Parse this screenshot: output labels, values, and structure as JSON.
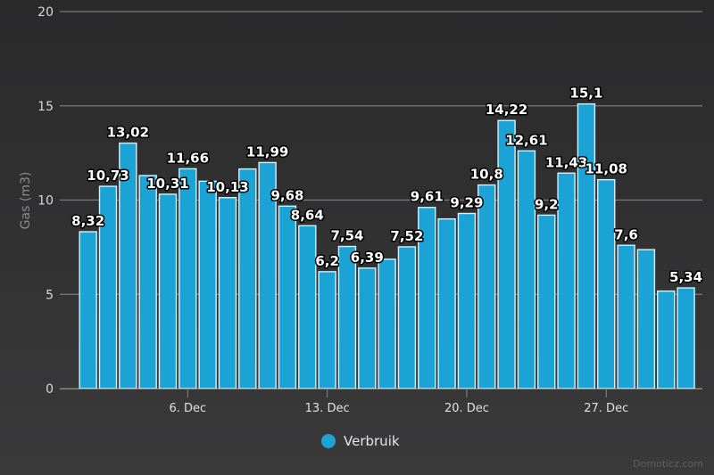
{
  "chart_data": {
    "type": "bar",
    "title": "",
    "xlabel": "",
    "ylabel": "Gas (m3)",
    "ylim": [
      0,
      20
    ],
    "yticks": [
      0,
      5,
      10,
      15,
      20
    ],
    "grid": true,
    "x": [
      1,
      2,
      3,
      4,
      5,
      6,
      7,
      8,
      9,
      10,
      11,
      12,
      13,
      14,
      15,
      16,
      17,
      18,
      19,
      20,
      21,
      22,
      23,
      24,
      25,
      26,
      27,
      28,
      29,
      30,
      31
    ],
    "month": "Dec",
    "xtick_days": [
      6,
      13,
      20,
      27
    ],
    "xtick_labels": [
      "6. Dec",
      "13. Dec",
      "20. Dec",
      "27. Dec"
    ],
    "series": [
      {
        "name": "Verbruik",
        "color": "#1ba3d6",
        "values": [
          8.32,
          10.73,
          13.02,
          11.3,
          10.31,
          11.66,
          11.0,
          10.13,
          11.65,
          11.99,
          9.68,
          8.64,
          6.2,
          7.54,
          6.39,
          6.86,
          7.52,
          9.61,
          9.0,
          9.29,
          10.8,
          14.22,
          12.61,
          9.2,
          11.43,
          15.1,
          11.08,
          7.6,
          7.37,
          5.17,
          5.34
        ],
        "data_labels": [
          "8,32",
          "10,73",
          "13,02",
          null,
          "10,31",
          "11,66",
          null,
          "10,13",
          null,
          "11,99",
          "9,68",
          "8,64",
          "6,2",
          "7,54",
          "6,39",
          null,
          "7,52",
          "9,61",
          null,
          "9,29",
          "10,8",
          "14,22",
          "12,61",
          "9,2",
          "11,43",
          "15,1",
          "11,08",
          "7,6",
          null,
          null,
          "5,34"
        ]
      }
    ],
    "legend": {
      "position": "bottom-center",
      "items": [
        "Verbruik"
      ]
    }
  },
  "legend": {
    "label": "Verbruik"
  },
  "credits": "Domoticz.com"
}
